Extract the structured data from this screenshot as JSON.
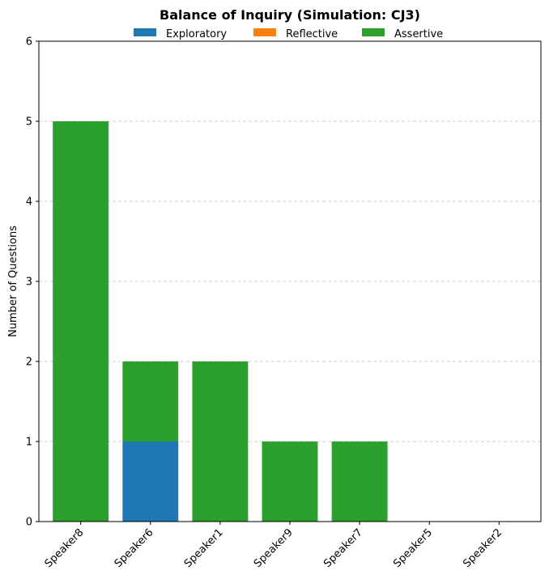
{
  "chart_data": {
    "type": "bar",
    "stacked": true,
    "title": "Balance of Inquiry (Simulation: CJ3)",
    "xlabel": "",
    "ylabel": "Number of Questions",
    "ylim": [
      0,
      6
    ],
    "yticks": [
      0,
      1,
      2,
      3,
      4,
      5,
      6
    ],
    "grid": "y dashed",
    "legend_placement": "top-center",
    "categories": [
      "Speaker8",
      "Speaker6",
      "Speaker1",
      "Speaker9",
      "Speaker7",
      "Speaker5",
      "Speaker2"
    ],
    "series": [
      {
        "name": "Exploratory",
        "color": "#1f77b4",
        "values": [
          0,
          1,
          0,
          0,
          0,
          0,
          0
        ]
      },
      {
        "name": "Reflective",
        "color": "#ff7f0e",
        "values": [
          0,
          0,
          0,
          0,
          0,
          0,
          0
        ]
      },
      {
        "name": "Assertive",
        "color": "#2ca02c",
        "values": [
          5,
          1,
          2,
          1,
          1,
          0,
          0
        ]
      }
    ]
  }
}
